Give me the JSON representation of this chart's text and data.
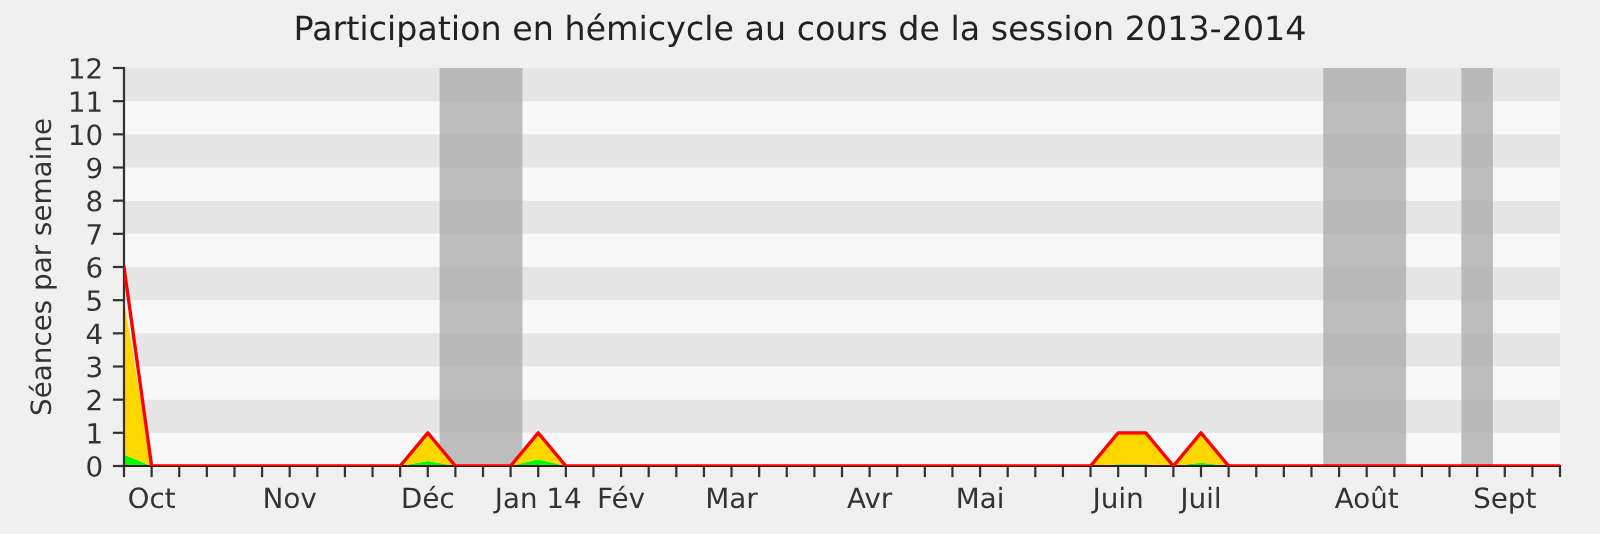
{
  "chart_data": {
    "type": "area",
    "title": "Participation en hémicycle au cours de la session 2013-2014",
    "ylabel": "Séances par semaine",
    "x": [
      "2013-09-30",
      "2013-10-07",
      "2013-10-14",
      "2013-10-21",
      "2013-10-28",
      "2013-11-04",
      "2013-11-11",
      "2013-11-18",
      "2013-11-25",
      "2013-12-02",
      "2013-12-09",
      "2013-12-16",
      "2013-12-23",
      "2013-12-30",
      "2014-01-06",
      "2014-01-13",
      "2014-01-20",
      "2014-01-27",
      "2014-02-03",
      "2014-02-10",
      "2014-02-17",
      "2014-02-24",
      "2014-03-03",
      "2014-03-10",
      "2014-03-17",
      "2014-03-24",
      "2014-03-31",
      "2014-04-07",
      "2014-04-14",
      "2014-04-21",
      "2014-04-28",
      "2014-05-05",
      "2014-05-12",
      "2014-05-19",
      "2014-05-26",
      "2014-06-02",
      "2014-06-09",
      "2014-06-16",
      "2014-06-23",
      "2014-06-30",
      "2014-07-07",
      "2014-07-14",
      "2014-07-21",
      "2014-07-28",
      "2014-08-04",
      "2014-08-11",
      "2014-08-18",
      "2014-08-25",
      "2014-09-01",
      "2014-09-08",
      "2014-09-15",
      "2014-09-22",
      "2014-09-29"
    ],
    "stacked": true,
    "series": [
      {
        "color": "#00ff00",
        "values": [
          0.35,
          0,
          0,
          0,
          0,
          0,
          0,
          0,
          0,
          0,
          0,
          0.15,
          0,
          0,
          0,
          0.2,
          0,
          0,
          0,
          0,
          0,
          0,
          0,
          0,
          0,
          0,
          0,
          0,
          0,
          0,
          0,
          0,
          0,
          0,
          0,
          0,
          0.05,
          0.05,
          0,
          0.1,
          0,
          0,
          0,
          0,
          0,
          0,
          0,
          0,
          0,
          0,
          0,
          0,
          0
        ]
      },
      {
        "color": "#ffd700",
        "values": [
          4.65,
          0,
          0,
          0,
          0,
          0,
          0,
          0,
          0,
          0,
          0,
          0.85,
          0,
          0,
          0,
          0.8,
          0,
          0,
          0,
          0,
          0,
          0,
          0,
          0,
          0,
          0,
          0,
          0,
          0,
          0,
          0,
          0,
          0,
          0,
          0,
          0,
          0.95,
          0.95,
          0,
          0.9,
          0,
          0,
          0,
          0,
          0,
          0,
          0,
          0,
          0,
          0,
          0,
          0,
          0
        ]
      },
      {
        "type": "line",
        "color": "#ff0000",
        "values": [
          6,
          0,
          0,
          0,
          0,
          0,
          0,
          0,
          0,
          0,
          0,
          1,
          0,
          0,
          0,
          1,
          0,
          0,
          0,
          0,
          0,
          0,
          0,
          0,
          0,
          0,
          0,
          0,
          0,
          0,
          0,
          0,
          0,
          0,
          0,
          0,
          1,
          1,
          0,
          1,
          0,
          0,
          0,
          0,
          0,
          0,
          0,
          0,
          0,
          0,
          0,
          0,
          0
        ]
      }
    ],
    "xlim": [
      "2013-09-30",
      "2014-09-29"
    ],
    "xticks": [
      {
        "value": "2013-09-30",
        "label": null
      },
      {
        "value": "2013-10-07",
        "label": "Oct"
      },
      {
        "value": "2013-10-14",
        "label": null
      },
      {
        "value": "2013-10-21",
        "label": null
      },
      {
        "value": "2013-10-28",
        "label": null
      },
      {
        "value": "2013-11-04",
        "label": null
      },
      {
        "value": "2013-11-11",
        "label": "Nov"
      },
      {
        "value": "2013-11-18",
        "label": null
      },
      {
        "value": "2013-11-25",
        "label": null
      },
      {
        "value": "2013-12-02",
        "label": null
      },
      {
        "value": "2013-12-09",
        "label": null
      },
      {
        "value": "2013-12-16",
        "label": "Déc"
      },
      {
        "value": "2013-12-23",
        "label": null
      },
      {
        "value": "2013-12-30",
        "label": null
      },
      {
        "value": "2014-01-06",
        "label": null
      },
      {
        "value": "2014-01-13",
        "label": "Jan 14"
      },
      {
        "value": "2014-01-20",
        "label": null
      },
      {
        "value": "2014-01-27",
        "label": null
      },
      {
        "value": "2014-02-03",
        "label": "Fév"
      },
      {
        "value": "2014-02-10",
        "label": null
      },
      {
        "value": "2014-02-17",
        "label": null
      },
      {
        "value": "2014-02-24",
        "label": null
      },
      {
        "value": "2014-03-03",
        "label": "Mar"
      },
      {
        "value": "2014-03-10",
        "label": null
      },
      {
        "value": "2014-03-17",
        "label": null
      },
      {
        "value": "2014-03-24",
        "label": null
      },
      {
        "value": "2014-03-31",
        "label": null
      },
      {
        "value": "2014-04-07",
        "label": "Avr"
      },
      {
        "value": "2014-04-14",
        "label": null
      },
      {
        "value": "2014-04-21",
        "label": null
      },
      {
        "value": "2014-04-28",
        "label": null
      },
      {
        "value": "2014-05-05",
        "label": "Mai"
      },
      {
        "value": "2014-05-12",
        "label": null
      },
      {
        "value": "2014-05-19",
        "label": null
      },
      {
        "value": "2014-05-26",
        "label": null
      },
      {
        "value": "2014-06-02",
        "label": null
      },
      {
        "value": "2014-06-09",
        "label": "Juin"
      },
      {
        "value": "2014-06-16",
        "label": null
      },
      {
        "value": "2014-06-23",
        "label": null
      },
      {
        "value": "2014-06-30",
        "label": "Juil"
      },
      {
        "value": "2014-07-07",
        "label": null
      },
      {
        "value": "2014-07-14",
        "label": null
      },
      {
        "value": "2014-07-21",
        "label": null
      },
      {
        "value": "2014-07-28",
        "label": null
      },
      {
        "value": "2014-08-04",
        "label": null
      },
      {
        "value": "2014-08-11",
        "label": "Août"
      },
      {
        "value": "2014-08-18",
        "label": null
      },
      {
        "value": "2014-08-25",
        "label": null
      },
      {
        "value": "2014-09-01",
        "label": null
      },
      {
        "value": "2014-09-08",
        "label": null
      },
      {
        "value": "2014-09-15",
        "label": "Sept"
      },
      {
        "value": "2014-09-22",
        "label": null
      },
      {
        "value": "2014-09-29",
        "label": null
      }
    ],
    "ylim": [
      0,
      12
    ],
    "yticks": [
      0,
      1,
      2,
      3,
      4,
      5,
      6,
      7,
      8,
      9,
      10,
      11,
      12
    ],
    "bands": [
      {
        "axis": "x",
        "from": "2013-12-19",
        "to": "2014-01-09",
        "color": "#aaaaaa"
      },
      {
        "axis": "x",
        "from": "2014-07-31",
        "to": "2014-08-21",
        "color": "#aaaaaa"
      },
      {
        "axis": "x",
        "from": "2014-09-04",
        "to": "2014-09-12",
        "color": "#aaaaaa"
      }
    ]
  }
}
